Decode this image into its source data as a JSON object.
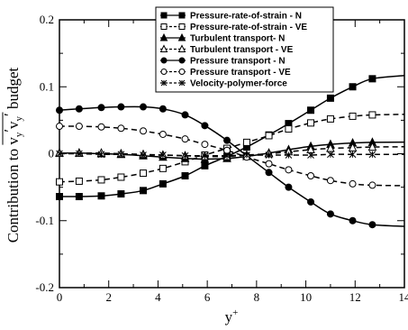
{
  "chart_data": {
    "type": "line",
    "xlabel_main": "y",
    "xlabel_sup": "+",
    "ylabel_prefix": "Contribution to ",
    "ylabel_var1": "v",
    "ylabel_sub1": "y",
    "ylabel_var2": "v",
    "ylabel_sub2": "y",
    "ylabel_suffix": " budget",
    "xlim": [
      0,
      14
    ],
    "ylim": [
      -0.2,
      0.2
    ],
    "xticks": [
      0,
      2,
      4,
      6,
      8,
      10,
      12,
      14
    ],
    "yticks": [
      -0.2,
      -0.1,
      0,
      0.1,
      0.2
    ],
    "ytick_labels": [
      "-0.2",
      "-0.1",
      "0",
      "0.1",
      "0.2"
    ],
    "minor_xticks": [
      1,
      3,
      5,
      7,
      9,
      11,
      13
    ],
    "minor_yticks": [
      -0.15,
      -0.05,
      0.05,
      0.15
    ],
    "legend_position": "top-center",
    "grid": false,
    "series": [
      {
        "name": "Pressure-rate-of-strain - N",
        "marker": "square-filled",
        "dash": "solid",
        "x": [
          0,
          0.8,
          1.7,
          2.5,
          3.4,
          4.2,
          5.1,
          5.9,
          6.8,
          7.6,
          8.5,
          9.3,
          10.2,
          11.0,
          11.9,
          12.7
        ],
        "y": [
          -0.064,
          -0.064,
          -0.063,
          -0.06,
          -0.055,
          -0.045,
          -0.033,
          -0.018,
          -0.004,
          0.01,
          0.028,
          0.045,
          0.065,
          0.083,
          0.1,
          0.112
        ]
      },
      {
        "name": "Pressure-rate-of-strain - VE",
        "marker": "square-open",
        "dash": "dashed",
        "x": [
          0,
          0.8,
          1.7,
          2.5,
          3.4,
          4.2,
          5.1,
          5.9,
          6.8,
          7.6,
          8.5,
          9.3,
          10.2,
          11.0,
          11.9,
          12.7
        ],
        "y": [
          -0.042,
          -0.041,
          -0.039,
          -0.035,
          -0.029,
          -0.022,
          -0.012,
          -0.002,
          0.008,
          0.017,
          0.027,
          0.037,
          0.046,
          0.052,
          0.056,
          0.058
        ]
      },
      {
        "name": "Turbulent transport- N",
        "marker": "triangle-filled",
        "dash": "solid",
        "x": [
          0,
          0.8,
          1.7,
          2.5,
          3.4,
          4.2,
          5.1,
          5.9,
          6.8,
          7.6,
          8.5,
          9.3,
          10.2,
          11.0,
          11.9,
          12.7
        ],
        "y": [
          0.001,
          0.001,
          0.0,
          -0.001,
          -0.003,
          -0.005,
          -0.007,
          -0.008,
          -0.007,
          -0.004,
          0.001,
          0.006,
          0.011,
          0.014,
          0.016,
          0.017
        ]
      },
      {
        "name": "Turbulent transport - VE",
        "marker": "triangle-open",
        "dash": "dashed",
        "x": [
          0,
          0.8,
          1.7,
          2.5,
          3.4,
          4.2,
          5.1,
          5.9,
          6.8,
          7.6,
          8.5,
          9.3,
          10.2,
          11.0,
          11.9,
          12.7
        ],
        "y": [
          0.001,
          0.001,
          0.001,
          0.0,
          -0.001,
          -0.002,
          -0.003,
          -0.004,
          -0.004,
          -0.002,
          0.0,
          0.003,
          0.006,
          0.008,
          0.009,
          0.01
        ]
      },
      {
        "name": "Pressure transport - N",
        "marker": "circle-filled",
        "dash": "solid",
        "x": [
          0,
          0.8,
          1.7,
          2.5,
          3.4,
          4.2,
          5.1,
          5.9,
          6.8,
          7.6,
          8.5,
          9.3,
          10.2,
          11.0,
          11.9,
          12.7
        ],
        "y": [
          0.065,
          0.067,
          0.069,
          0.07,
          0.07,
          0.067,
          0.058,
          0.042,
          0.02,
          -0.003,
          -0.028,
          -0.05,
          -0.072,
          -0.09,
          -0.1,
          -0.106
        ]
      },
      {
        "name": "Pressure transport - VE",
        "marker": "circle-open",
        "dash": "dashed",
        "x": [
          0,
          0.8,
          1.7,
          2.5,
          3.4,
          4.2,
          5.1,
          5.9,
          6.8,
          7.6,
          8.5,
          9.3,
          10.2,
          11.0,
          11.9,
          12.7
        ],
        "y": [
          0.041,
          0.041,
          0.04,
          0.038,
          0.034,
          0.029,
          0.022,
          0.014,
          0.005,
          -0.005,
          -0.015,
          -0.024,
          -0.033,
          -0.04,
          -0.045,
          -0.047
        ]
      },
      {
        "name": "Velocity-polymer-force",
        "marker": "star",
        "dash": "dashed",
        "x": [
          0,
          0.8,
          1.7,
          2.5,
          3.4,
          4.2,
          5.1,
          5.9,
          6.8,
          7.6,
          8.5,
          9.3,
          10.2,
          11.0,
          11.9,
          12.7
        ],
        "y": [
          0.0,
          0.0,
          -0.001,
          -0.001,
          -0.002,
          -0.002,
          -0.003,
          -0.003,
          -0.003,
          -0.002,
          -0.002,
          -0.002,
          -0.002,
          -0.001,
          -0.001,
          -0.001
        ]
      }
    ]
  }
}
